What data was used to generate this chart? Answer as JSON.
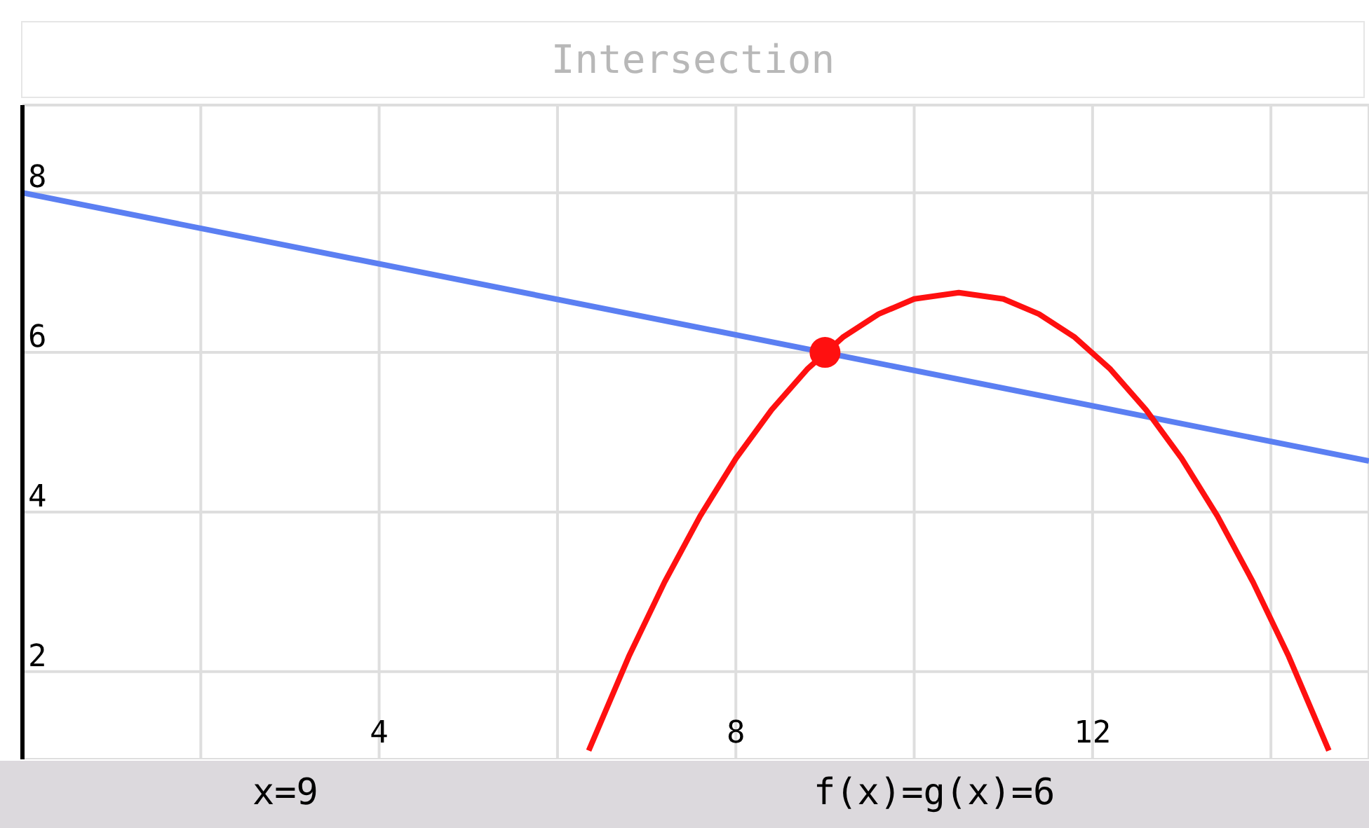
{
  "chart_data": {
    "type": "line",
    "title": "Intersection",
    "annotations": [
      "x=9",
      "f(x)=g(x)=6"
    ],
    "series": [
      {
        "color": "#5b7ff2",
        "x": [
          0,
          15.1
        ],
        "values": [
          8,
          4.64
        ]
      },
      {
        "color": "#ff1010",
        "x": [
          6.35,
          6.8,
          7.2,
          7.6,
          8.0,
          8.4,
          8.8,
          9.2,
          9.6,
          10.0,
          10.5,
          11.0,
          11.4,
          11.8,
          12.2,
          12.6,
          13.0,
          13.4,
          13.8,
          14.2,
          14.65
        ],
        "values": [
          1.01,
          2.19,
          3.12,
          3.95,
          4.67,
          5.28,
          5.79,
          6.19,
          6.48,
          6.67,
          6.75,
          6.67,
          6.48,
          6.19,
          5.79,
          5.28,
          4.67,
          3.95,
          3.12,
          2.19,
          1.01
        ]
      },
      {
        "type": "scatter",
        "color": "#ff1010",
        "marker": "circle",
        "x": [
          9
        ],
        "values": [
          6
        ]
      }
    ],
    "xlim": [
      0,
      15.1
    ],
    "xticks": [
      {
        "value": 2,
        "label": null
      },
      4,
      {
        "value": 6,
        "label": null
      },
      8,
      {
        "value": 10,
        "label": null
      },
      12,
      {
        "value": 14,
        "label": null
      }
    ],
    "ylim": [
      0.9,
      9.1
    ],
    "yticks": [
      2,
      4,
      6,
      8
    ],
    "grid": true
  }
}
